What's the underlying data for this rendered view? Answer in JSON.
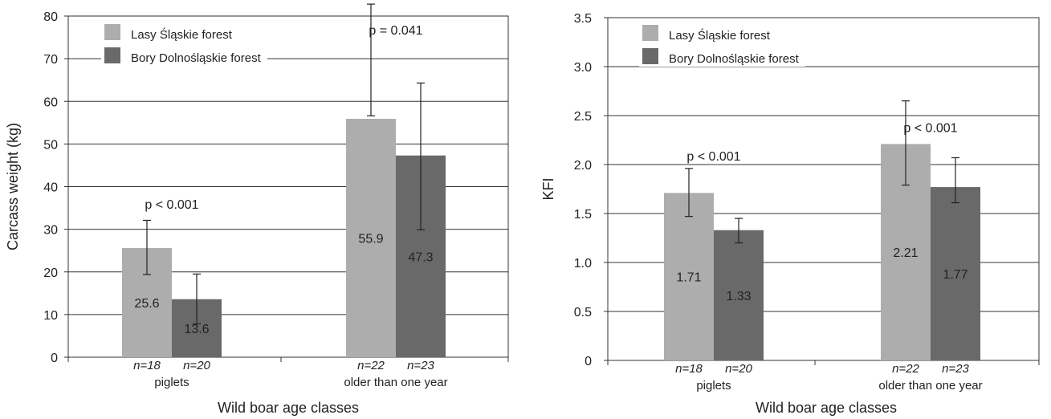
{
  "chart_data": [
    {
      "type": "bar",
      "categories": [
        "piglets",
        "older than one year"
      ],
      "xlabel": "Wild boar age classes",
      "ylabel": "Carcass weight (kg)",
      "ylim": [
        0,
        80
      ],
      "yticks": [
        "0",
        "10",
        "20",
        "30",
        "40",
        "50",
        "60",
        "70",
        "80"
      ],
      "grid": true,
      "legend_position": "top-left",
      "series": [
        {
          "name": "Lasy Śląskie forest",
          "color": "#adadad",
          "values": [
            25.6,
            55.9
          ],
          "value_labels": [
            "25.6",
            "55.9"
          ],
          "error_low": [
            19.4,
            56.6
          ],
          "error_high": [
            32.1,
            82.8
          ],
          "n_labels": [
            "n=18",
            "n=22"
          ]
        },
        {
          "name": "Bory Dolnośląskie forest",
          "color": "#696969",
          "values": [
            13.6,
            47.3
          ],
          "value_labels": [
            "13.6",
            "47.3"
          ],
          "error_low": [
            7.8,
            29.9
          ],
          "error_high": [
            19.5,
            64.3
          ],
          "n_labels": [
            "n=20",
            "n=23"
          ]
        }
      ],
      "annotations": [
        {
          "text": "p < 0.001",
          "category": 0,
          "y": 34.8
        },
        {
          "text": "p = 0.041",
          "category": 1,
          "y": 75.7
        }
      ]
    },
    {
      "type": "bar",
      "categories": [
        "piglets",
        "older than one year"
      ],
      "xlabel": "Wild boar age classes",
      "ylabel": "KFI",
      "ylim": [
        0,
        3.5
      ],
      "yticks": [
        "0",
        "0.5",
        "1.0",
        "1.5",
        "2.0",
        "2.5",
        "3.0",
        "3.5"
      ],
      "grid": true,
      "legend_position": "top-left",
      "series": [
        {
          "name": "Lasy Śląskie forest",
          "color": "#adadad",
          "values": [
            1.71,
            2.21
          ],
          "value_labels": [
            "1.71",
            "2.21"
          ],
          "error_low": [
            1.47,
            1.79
          ],
          "error_high": [
            1.96,
            2.65
          ],
          "n_labels": [
            "n=18",
            "n=22"
          ]
        },
        {
          "name": "Bory Dolnośląskie forest",
          "color": "#696969",
          "values": [
            1.33,
            1.77
          ],
          "value_labels": [
            "1.33",
            "1.77"
          ],
          "error_low": [
            1.2,
            1.61
          ],
          "error_high": [
            1.45,
            2.07
          ],
          "n_labels": [
            "n=20",
            "n=23"
          ]
        }
      ],
      "annotations": [
        {
          "text": "p < 0.001",
          "category": 0,
          "y": 2.04
        },
        {
          "text": "p < 0.001",
          "category": 1,
          "y": 2.33
        }
      ]
    }
  ]
}
